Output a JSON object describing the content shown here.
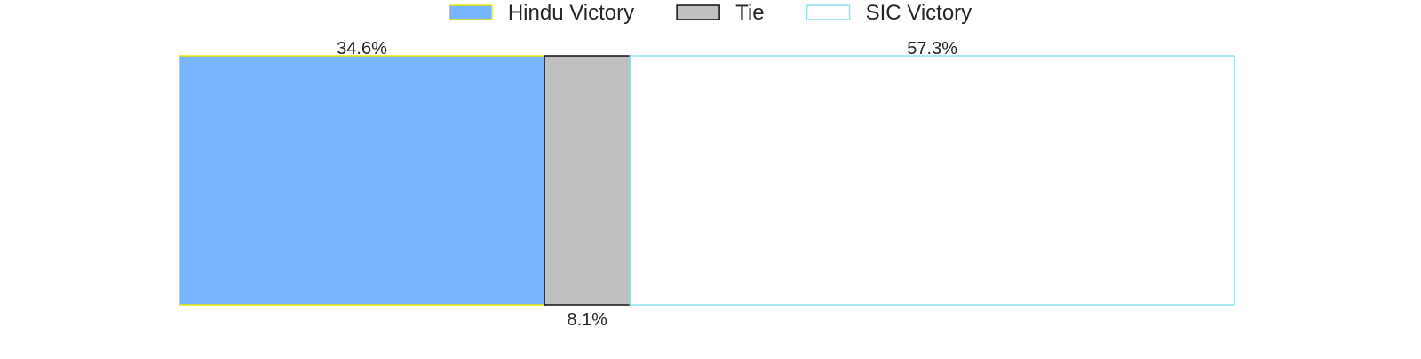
{
  "chart_data": {
    "type": "bar",
    "orientation": "horizontal-stacked",
    "categories": [
      ""
    ],
    "series": [
      {
        "name": "Hindu Victory",
        "values": [
          34.6
        ],
        "label": "34.6%",
        "fill": "#77b5fe",
        "stroke": "#e8e800"
      },
      {
        "name": "Tie",
        "values": [
          8.1
        ],
        "label": "8.1%",
        "fill": "#c0c0c0",
        "stroke": "#111111"
      },
      {
        "name": "SIC Victory",
        "values": [
          57.3
        ],
        "label": "57.3%",
        "fill": "#ffffff",
        "stroke": "#8fe3ef"
      }
    ],
    "xlim": [
      0,
      100
    ],
    "grid": false,
    "legend_position": "top-center",
    "title": "",
    "xlabel": "",
    "ylabel": ""
  }
}
